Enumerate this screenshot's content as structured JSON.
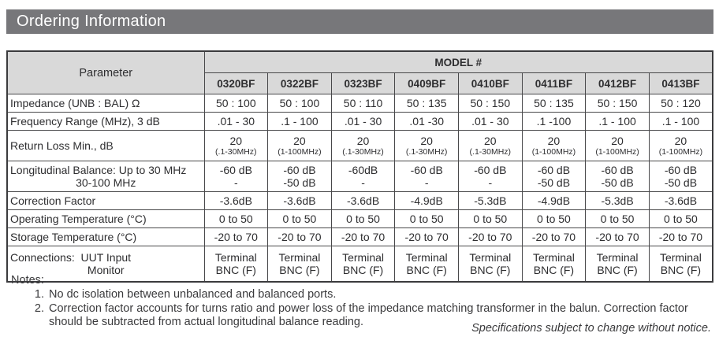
{
  "title": "Ordering Information",
  "table": {
    "parameter_header": "Parameter",
    "model_header": "MODEL #",
    "models": [
      "0320BF",
      "0322BF",
      "0323BF",
      "0409BF",
      "0410BF",
      "0411BF",
      "0412BF",
      "0413BF"
    ],
    "rows": [
      {
        "parameter": [
          "Impedance (UNB : BAL) Ω"
        ],
        "values": [
          [
            "50 : 100"
          ],
          [
            "50 : 100"
          ],
          [
            "50 : 110"
          ],
          [
            "50 : 135"
          ],
          [
            "50 : 150"
          ],
          [
            "50 : 135"
          ],
          [
            "50 : 150"
          ],
          [
            "50 : 120"
          ]
        ],
        "height": "single"
      },
      {
        "parameter": [
          "Frequency Range (MHz), 3 dB"
        ],
        "values": [
          [
            ".01 - 30"
          ],
          [
            ".1 - 100"
          ],
          [
            ".01 - 30"
          ],
          [
            ".01 -30"
          ],
          [
            ".01 - 30"
          ],
          [
            ".1 -100"
          ],
          [
            ".1 - 100"
          ],
          [
            ".1 - 100"
          ]
        ],
        "height": "single"
      },
      {
        "parameter": [
          "Return Loss Min., dB"
        ],
        "values": [
          [
            "20",
            "(.1-30MHz)"
          ],
          [
            "20",
            "(1-100MHz)"
          ],
          [
            "20",
            "(.1-30MHz)"
          ],
          [
            "20",
            "(.1-30MHz)"
          ],
          [
            "20",
            "(.1-30MHz)"
          ],
          [
            "20",
            "(1-100MHz)"
          ],
          [
            "20",
            "(1-100MHz)"
          ],
          [
            "20",
            "(1-100MHz)"
          ]
        ],
        "value_line2_small": true,
        "height": "tall"
      },
      {
        "parameter": [
          "Longitudinal Balance: Up to 30 MHz",
          "30-100 MHz"
        ],
        "values": [
          [
            "-60 dB",
            "-"
          ],
          [
            "-60 dB",
            "-50 dB"
          ],
          [
            "-60dB",
            "-"
          ],
          [
            "-60 dB",
            "-"
          ],
          [
            "-60 dB",
            "-"
          ],
          [
            "-60 dB",
            "-50 dB"
          ],
          [
            "-60 dB",
            "-50 dB"
          ],
          [
            "-60 dB",
            "-50 dB"
          ]
        ],
        "height": "tall"
      },
      {
        "parameter": [
          "Correction Factor"
        ],
        "values": [
          [
            "-3.6dB"
          ],
          [
            "-3.6dB"
          ],
          [
            "-3.6dB"
          ],
          [
            "-4.9dB"
          ],
          [
            "-5.3dB"
          ],
          [
            "-4.9dB"
          ],
          [
            "-5.3dB"
          ],
          [
            "-3.6dB"
          ]
        ],
        "height": "single"
      },
      {
        "parameter": [
          "Operating Temperature (°C)"
        ],
        "values": [
          [
            "0 to 50"
          ],
          [
            "0 to 50"
          ],
          [
            "0 to 50"
          ],
          [
            "0 to 50"
          ],
          [
            "0 to 50"
          ],
          [
            "0 to 50"
          ],
          [
            "0 to 50"
          ],
          [
            "0 to 50"
          ]
        ],
        "height": "single"
      },
      {
        "parameter": [
          "Storage Temperature (°C)"
        ],
        "values": [
          [
            "-20 to 70"
          ],
          [
            "-20 to 70"
          ],
          [
            "-20 to 70"
          ],
          [
            "-20 to 70"
          ],
          [
            "-20 to 70"
          ],
          [
            "-20 to 70"
          ],
          [
            "-20 to 70"
          ],
          [
            "-20 to 70"
          ]
        ],
        "height": "single"
      },
      {
        "parameter": [
          "Connections:  UUT Input",
          "Monitor"
        ],
        "values": [
          [
            "Terminal",
            "BNC (F)"
          ],
          [
            "Terminal",
            "BNC (F)"
          ],
          [
            "Terminal",
            "BNC (F)"
          ],
          [
            "Terminal",
            "BNC (F)"
          ],
          [
            "Terminal",
            "BNC (F)"
          ],
          [
            "Terminal",
            "BNC (F)"
          ],
          [
            "Terminal",
            "BNC (F)"
          ],
          [
            "Terminal",
            "BNC (F)"
          ]
        ],
        "height": "xtall"
      }
    ]
  },
  "notes": {
    "heading": "Notes:",
    "items": [
      "No dc isolation between unbalanced and balanced ports.",
      "Correction factor accounts for turns ratio and power loss of the impedance matching transformer in the balun. Correction factor should be subtracted from actual longitudinal balance reading."
    ]
  },
  "footer": "Specifications subject to change without notice.",
  "colors": {
    "title_bar_bg": "#77777a",
    "title_text": "#ffffff",
    "header_bg": "#d9d9d9",
    "border": "#3b3b3d",
    "text": "#2e2e30"
  }
}
